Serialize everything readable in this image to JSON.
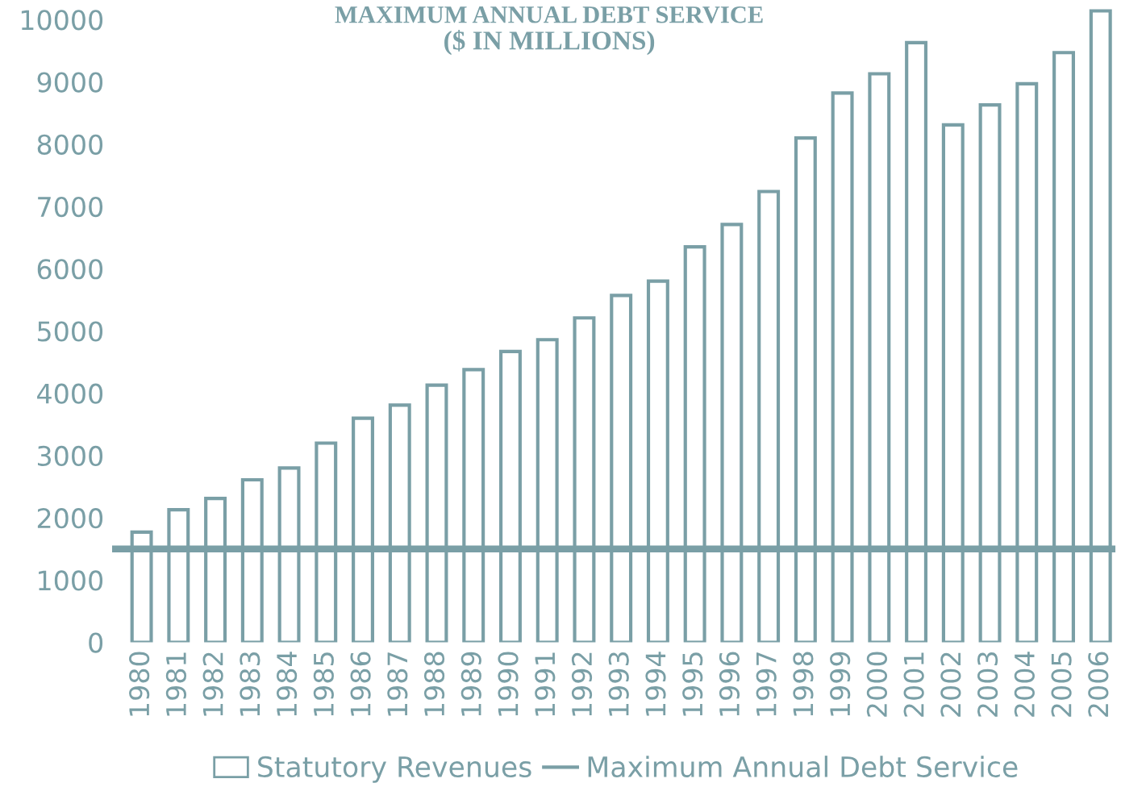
{
  "chart_data": {
    "type": "bar",
    "title": "MAXIMUM ANNUAL DEBT SERVICE",
    "subtitle": "($ IN MILLIONS)",
    "categories": [
      "1980",
      "1981",
      "1982",
      "1983",
      "1984",
      "1985",
      "1986",
      "1987",
      "1988",
      "1989",
      "1990",
      "1991",
      "1992",
      "1993",
      "1994",
      "1995",
      "1996",
      "1997",
      "1998",
      "1999",
      "2000",
      "2001",
      "2002",
      "2003",
      "2004",
      "2005",
      "2006"
    ],
    "series": [
      {
        "name": "Statutory Revenues",
        "color": "#7a9fa6",
        "values": [
          1770,
          2130,
          2310,
          2610,
          2800,
          3200,
          3600,
          3810,
          4130,
          4380,
          4670,
          4860,
          5210,
          5570,
          5800,
          6350,
          6710,
          7240,
          8100,
          8820,
          9130,
          9630,
          8310,
          8630,
          8970,
          9470,
          10140
        ]
      }
    ],
    "ref_lines": [
      {
        "axis": "y",
        "value": 1500,
        "label": "Maximum Annual Debt Service",
        "color": "#7a9fa6"
      }
    ],
    "ylim": [
      0,
      10250
    ],
    "yticks": [
      0,
      1000,
      2000,
      3000,
      4000,
      5000,
      6000,
      7000,
      8000,
      9000,
      10000
    ],
    "grid": false,
    "legend": "bottom"
  }
}
